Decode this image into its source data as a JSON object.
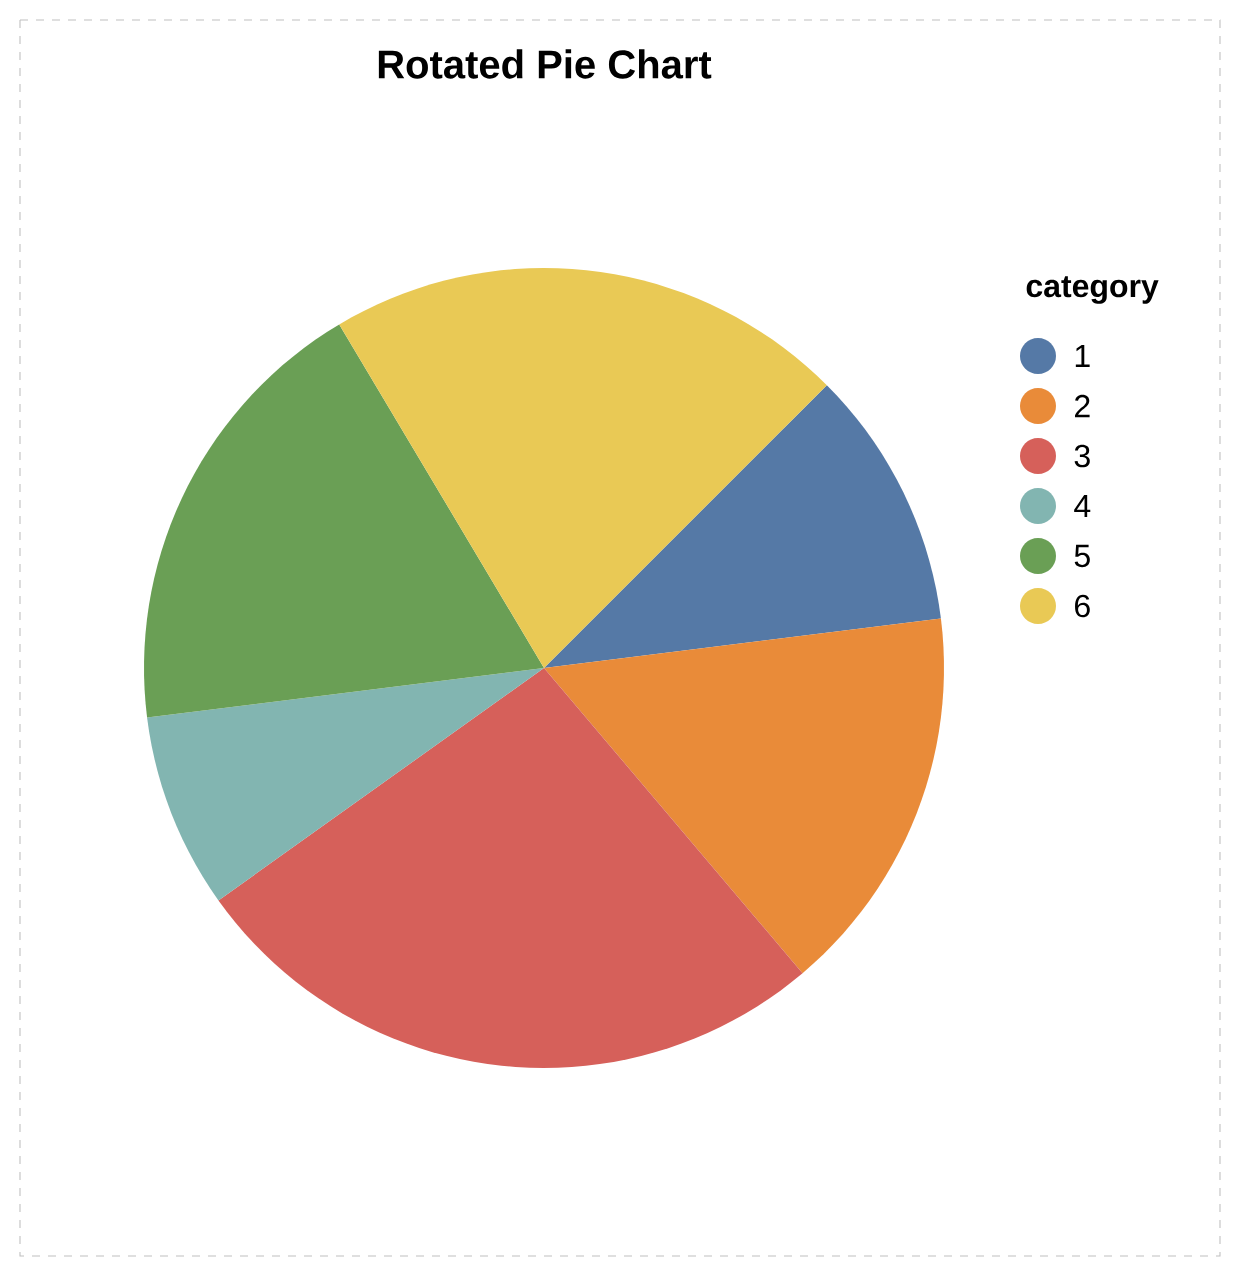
{
  "chart_data": {
    "type": "pie",
    "title": "Rotated Pie Chart",
    "legend_title": "category",
    "legend": "right",
    "categories": [
      "1",
      "2",
      "3",
      "4",
      "5",
      "6"
    ],
    "values": [
      10.526,
      15.789,
      26.316,
      7.895,
      18.421,
      21.053
    ],
    "colors": [
      "#5579a6",
      "#e98b39",
      "#d6605a",
      "#82b5b1",
      "#6a9f55",
      "#e9c955"
    ]
  }
}
